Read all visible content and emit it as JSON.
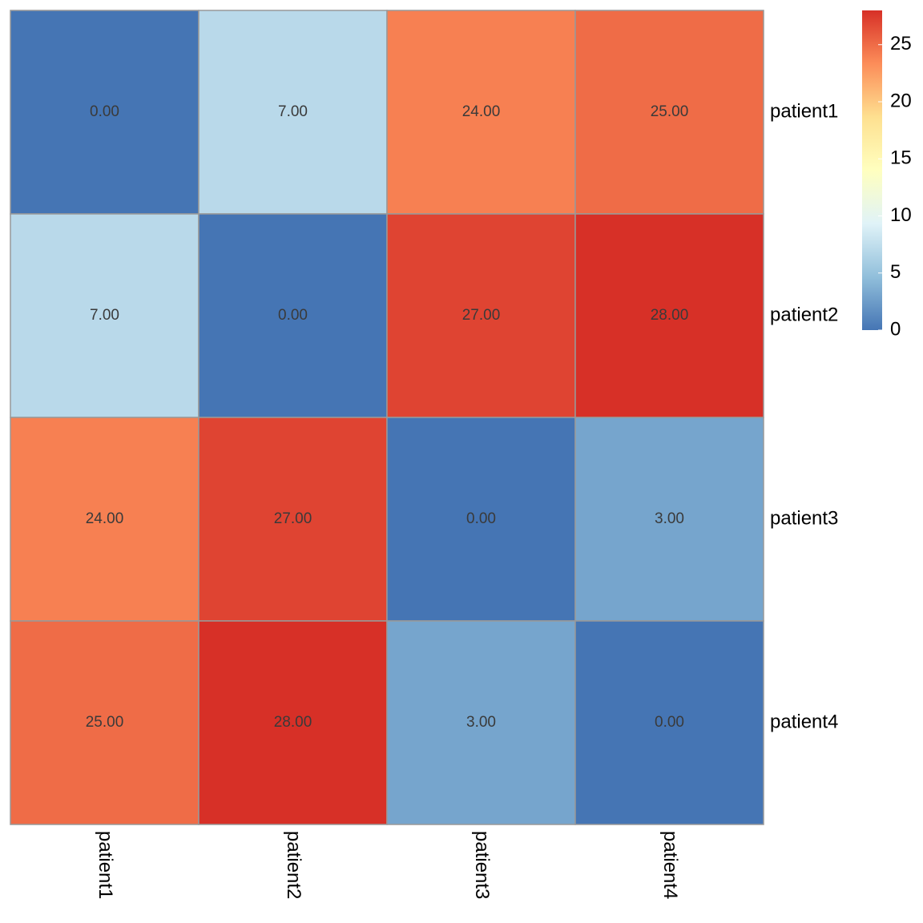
{
  "chart_data": {
    "type": "heatmap",
    "x": [
      "patient1",
      "patient2",
      "patient3",
      "patient4"
    ],
    "y": [
      "patient1",
      "patient2",
      "patient3",
      "patient4"
    ],
    "values": [
      [
        0,
        7,
        24,
        25
      ],
      [
        7,
        0,
        27,
        28
      ],
      [
        24,
        27,
        0,
        3
      ],
      [
        25,
        28,
        3,
        0
      ]
    ],
    "value_labels": [
      [
        "0.00",
        "7.00",
        "24.00",
        "25.00"
      ],
      [
        "7.00",
        "0.00",
        "27.00",
        "28.00"
      ],
      [
        "24.00",
        "27.00",
        "0.00",
        "3.00"
      ],
      [
        "25.00",
        "28.00",
        "3.00",
        "0.00"
      ]
    ],
    "zlim": [
      0,
      28
    ],
    "zticks": [
      0,
      5,
      10,
      15,
      20,
      25
    ],
    "colors": [
      "#4575B4",
      "#91BFDB",
      "#E0F3F8",
      "#FFFFBF",
      "#FEE090",
      "#FC8D59",
      "#D73027"
    ],
    "border_color": "#999999"
  }
}
